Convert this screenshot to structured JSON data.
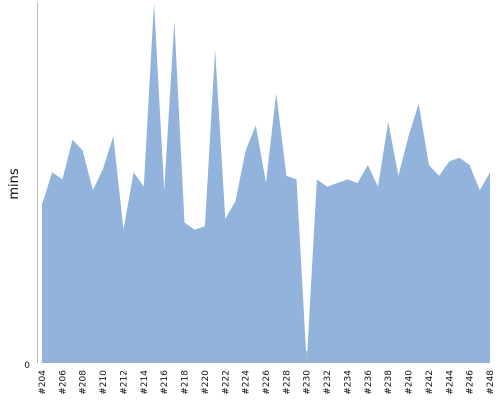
{
  "chart_data": {
    "type": "area",
    "ylabel": "mins",
    "ytick_labels": [
      "0"
    ],
    "ylim": [
      0,
      100
    ],
    "x": [
      "#204",
      "#205",
      "#206",
      "#207",
      "#208",
      "#209",
      "#210",
      "#211",
      "#212",
      "#213",
      "#214",
      "#215",
      "#216",
      "#217",
      "#218",
      "#219",
      "#220",
      "#221",
      "#222",
      "#223",
      "#224",
      "#225",
      "#226",
      "#227",
      "#228",
      "#229",
      "#230",
      "#231",
      "#232",
      "#233",
      "#234",
      "#235",
      "#236",
      "#237",
      "#238",
      "#239",
      "#240",
      "#241",
      "#242",
      "#243",
      "#244",
      "#245",
      "#246",
      "#247",
      "#248"
    ],
    "xtick_labels": [
      "#204",
      "#206",
      "#208",
      "#210",
      "#212",
      "#214",
      "#216",
      "#218",
      "#220",
      "#222",
      "#224",
      "#226",
      "#228",
      "#230",
      "#232",
      "#234",
      "#236",
      "#238",
      "#240",
      "#242",
      "#244",
      "#246",
      "#248"
    ],
    "series": [
      {
        "values": [
          44,
          53,
          51,
          62,
          59,
          48,
          54,
          63,
          37,
          53,
          49,
          100,
          48,
          95,
          39,
          37,
          38,
          87,
          40,
          45,
          59,
          66,
          50,
          75,
          52,
          51,
          0,
          51,
          49,
          50,
          51,
          50,
          55,
          49,
          67,
          52,
          63,
          72,
          55,
          52,
          56,
          57,
          55,
          48,
          53
        ],
        "failed_indices": [
          26
        ]
      }
    ],
    "colors": {
      "fill": "#91b3dc",
      "failed_fill": "#c0c0c0",
      "axis": "#bbbbbb"
    },
    "grid": false
  }
}
